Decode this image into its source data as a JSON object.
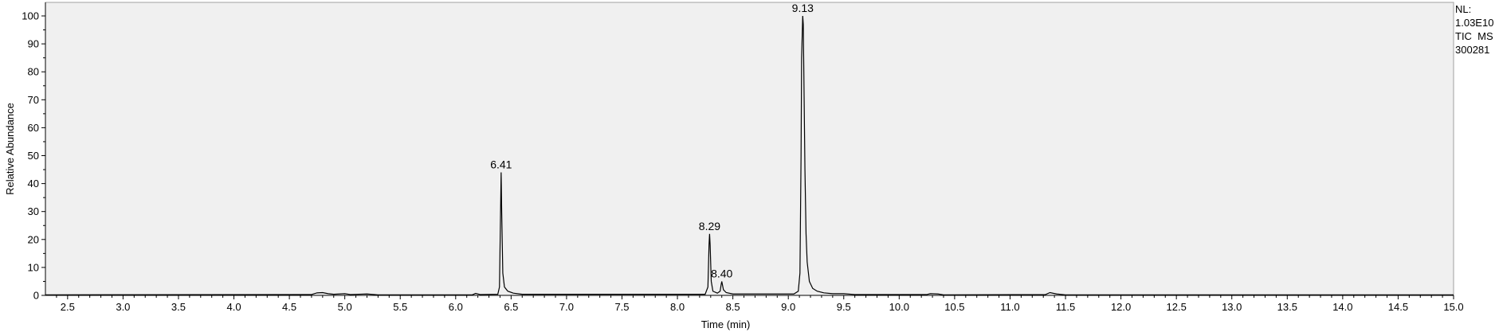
{
  "chart_data": {
    "type": "line",
    "title": "",
    "xlabel": "Time (min)",
    "ylabel": "Relative Abundance",
    "xlim": [
      2.3,
      15.0
    ],
    "ylim": [
      0,
      100
    ],
    "xticks": [
      2.5,
      3.0,
      3.5,
      4.0,
      4.5,
      5.0,
      5.5,
      6.0,
      6.5,
      7.0,
      7.5,
      8.0,
      8.5,
      9.0,
      9.5,
      10.0,
      10.5,
      11.0,
      11.5,
      12.0,
      12.5,
      13.0,
      13.5,
      14.0,
      14.5,
      15.0
    ],
    "xtick_labels": [
      "2.5",
      "3.0",
      "3.5",
      "4.0",
      "4.5",
      "5.0",
      "5.5",
      "6.0",
      "6.5",
      "7.0",
      "7.5",
      "8.0",
      "8.5",
      "9.0",
      "9.5",
      "10.0",
      "10.5",
      "11.0",
      "11.5",
      "12.0",
      "12.5",
      "13.0",
      "13.5",
      "14.0",
      "14.5",
      "15.0"
    ],
    "yticks": [
      0,
      10,
      20,
      30,
      40,
      50,
      60,
      70,
      80,
      90,
      100
    ],
    "ytick_labels": [
      "0",
      "10",
      "20",
      "30",
      "40",
      "50",
      "60",
      "70",
      "80",
      "90",
      "100"
    ],
    "grid": false,
    "series": [
      {
        "points": [
          [
            2.3,
            0.2
          ],
          [
            4.7,
            0.3
          ],
          [
            4.75,
            0.9
          ],
          [
            4.8,
            1.0
          ],
          [
            4.85,
            0.6
          ],
          [
            4.9,
            0.4
          ],
          [
            5.0,
            0.6
          ],
          [
            5.05,
            0.3
          ],
          [
            5.2,
            0.5
          ],
          [
            5.3,
            0.2
          ],
          [
            6.15,
            0.2
          ],
          [
            6.18,
            0.7
          ],
          [
            6.22,
            0.3
          ],
          [
            6.38,
            0.4
          ],
          [
            6.395,
            3.0
          ],
          [
            6.405,
            30.0
          ],
          [
            6.41,
            44.0
          ],
          [
            6.415,
            30.0
          ],
          [
            6.425,
            8.0
          ],
          [
            6.44,
            3.0
          ],
          [
            6.47,
            1.5
          ],
          [
            6.52,
            0.8
          ],
          [
            6.6,
            0.4
          ],
          [
            8.25,
            0.4
          ],
          [
            8.275,
            3.0
          ],
          [
            8.285,
            18.0
          ],
          [
            8.29,
            22.0
          ],
          [
            8.295,
            18.0
          ],
          [
            8.305,
            5.0
          ],
          [
            8.32,
            1.5
          ],
          [
            8.36,
            0.8
          ],
          [
            8.385,
            1.5
          ],
          [
            8.395,
            4.0
          ],
          [
            8.4,
            5.0
          ],
          [
            8.405,
            4.0
          ],
          [
            8.415,
            2.0
          ],
          [
            8.44,
            1.0
          ],
          [
            8.5,
            0.5
          ],
          [
            9.05,
            0.5
          ],
          [
            9.09,
            1.5
          ],
          [
            9.105,
            8.0
          ],
          [
            9.115,
            50.0
          ],
          [
            9.12,
            85.0
          ],
          [
            9.13,
            100.0
          ],
          [
            9.135,
            97.0
          ],
          [
            9.14,
            80.0
          ],
          [
            9.15,
            45.0
          ],
          [
            9.16,
            22.0
          ],
          [
            9.17,
            12.0
          ],
          [
            9.19,
            5.0
          ],
          [
            9.22,
            2.5
          ],
          [
            9.26,
            1.5
          ],
          [
            9.32,
            0.9
          ],
          [
            9.4,
            0.6
          ],
          [
            9.5,
            0.6
          ],
          [
            9.6,
            0.3
          ],
          [
            10.25,
            0.3
          ],
          [
            10.28,
            0.6
          ],
          [
            10.35,
            0.5
          ],
          [
            10.4,
            0.2
          ],
          [
            11.32,
            0.3
          ],
          [
            11.36,
            1.0
          ],
          [
            11.42,
            0.5
          ],
          [
            11.5,
            0.2
          ],
          [
            15.0,
            0.2
          ]
        ]
      }
    ],
    "peak_labels": [
      {
        "x": 6.41,
        "y": 44.0,
        "text": "6.41"
      },
      {
        "x": 8.29,
        "y": 22.0,
        "text": "8.29"
      },
      {
        "x": 8.4,
        "y": 5.0,
        "text": "8.40"
      },
      {
        "x": 9.13,
        "y": 100.0,
        "text": "9.13"
      }
    ]
  },
  "info": {
    "nl_label": "NL:",
    "nl_value": "1.03E10",
    "trace": "TIC  MS",
    "file": "300281"
  },
  "colors": {
    "plot_background": "#f0f0f0",
    "trace": "#000000",
    "axis": "#000000"
  }
}
